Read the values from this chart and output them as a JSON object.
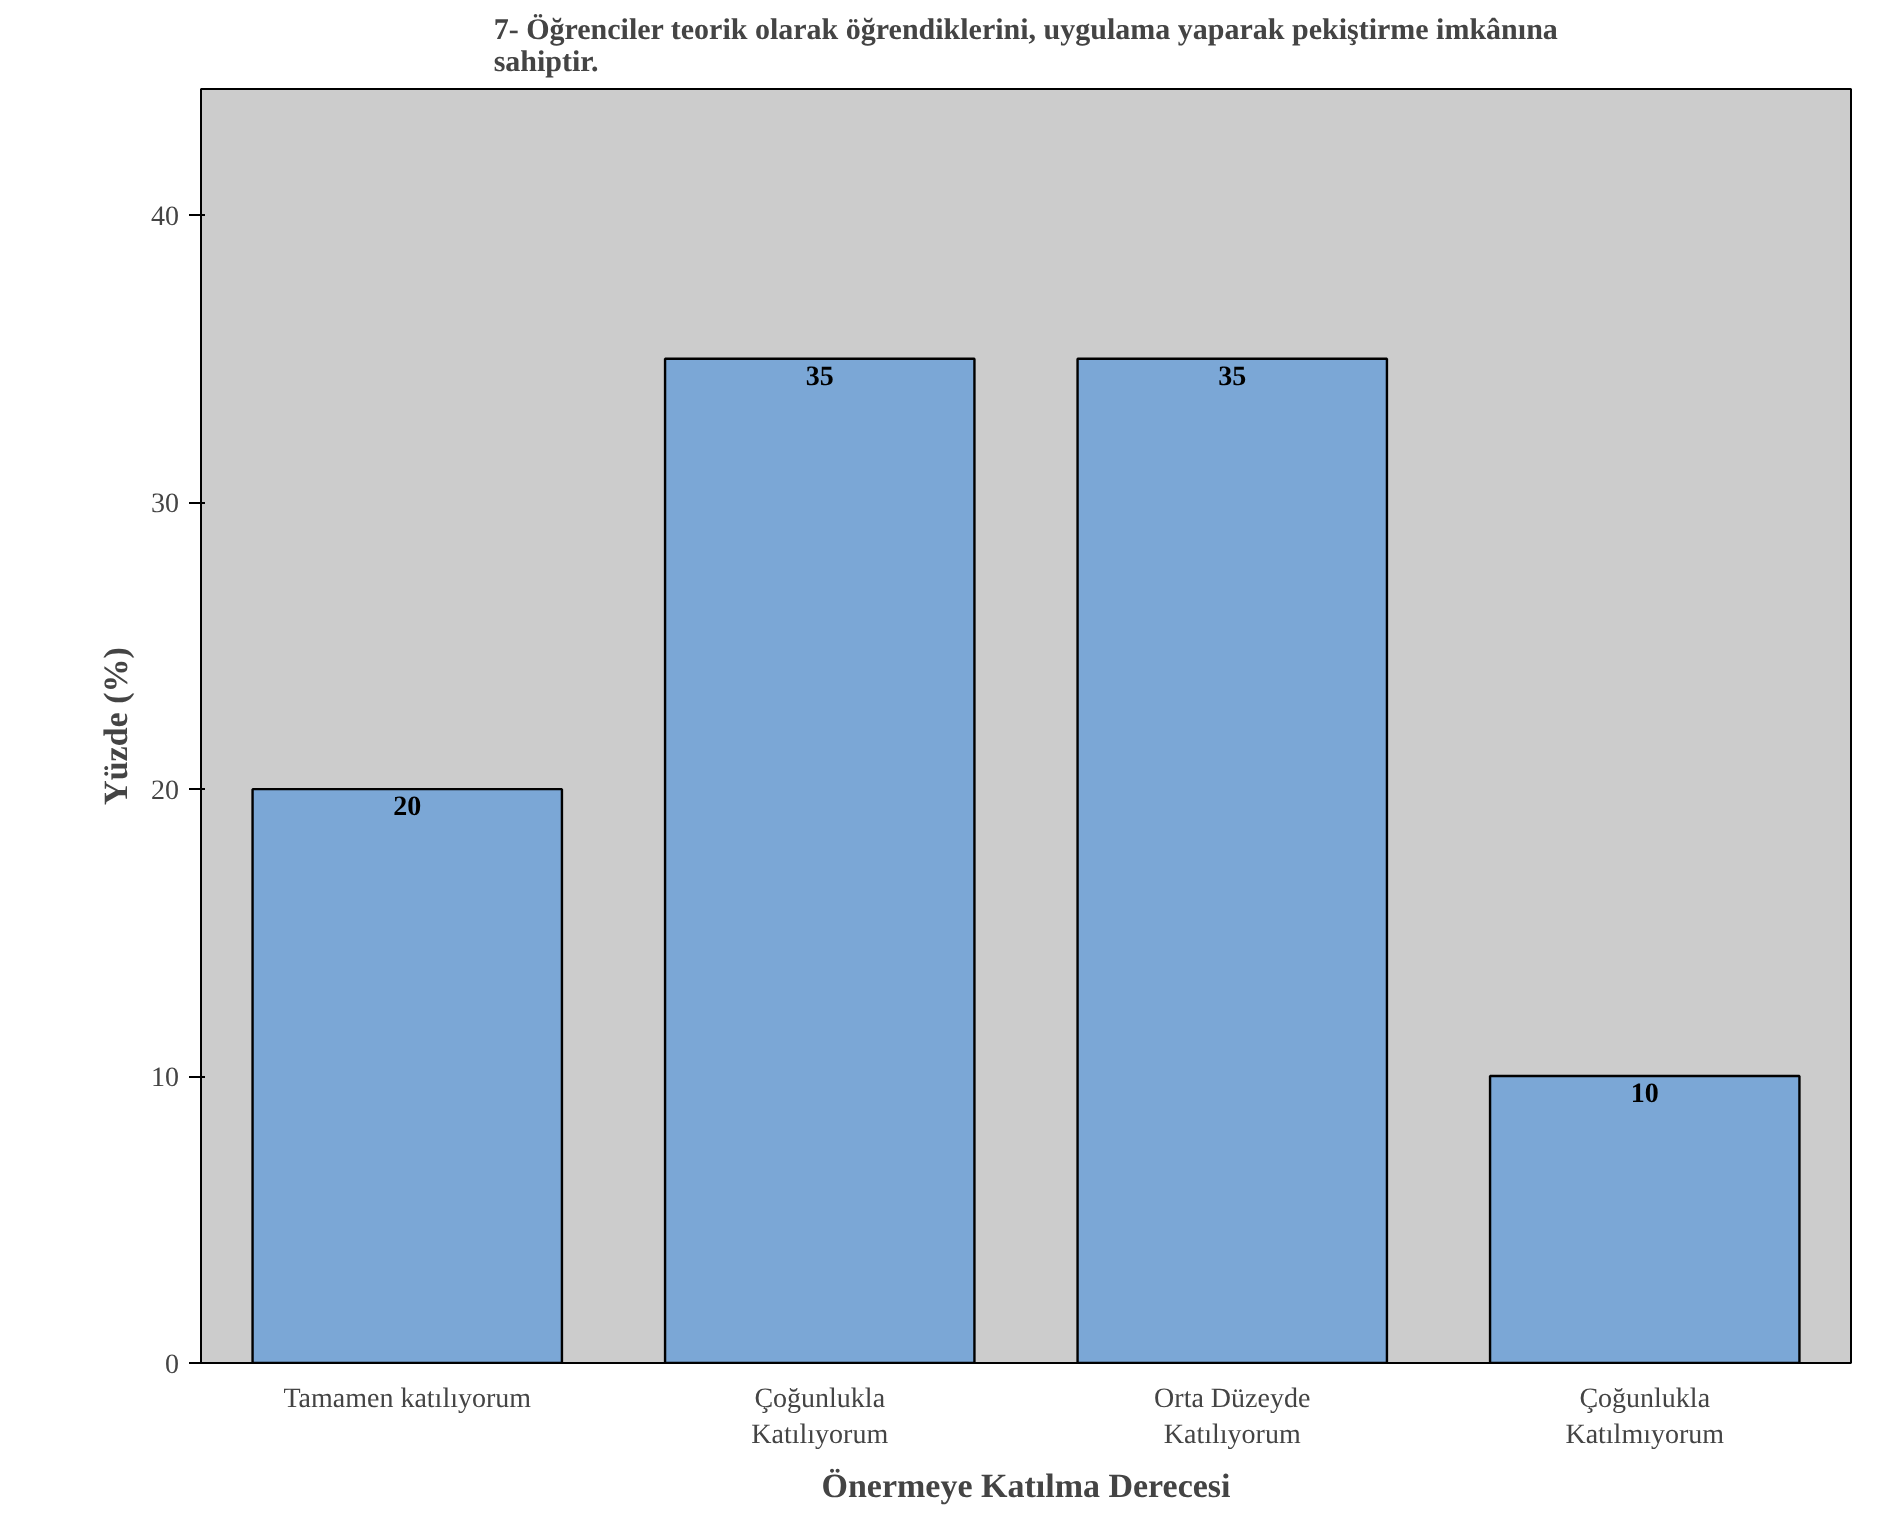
{
  "chart_data": {
    "type": "bar",
    "title": "7- Öğrenciler teorik olarak öğrendiklerini, uygulama yaparak pekiştirme imkânına sahiptir.",
    "xlabel": "Önermeye Katılma Derecesi",
    "ylabel": "Yüzde (%)",
    "categories": [
      "Tamamen katılıyorum",
      "Çoğunlukla\nKatılıyorum",
      "Orta Düzeyde\nKatılıyorum",
      "Çoğunlukla\nKatılmıyorum"
    ],
    "values": [
      20,
      35,
      35,
      10
    ],
    "color": "#7ba7d6",
    "ylim": [
      0,
      44.4
    ],
    "yticks": [
      0,
      10,
      20,
      30,
      40
    ],
    "grid": false,
    "data_labels": true
  }
}
